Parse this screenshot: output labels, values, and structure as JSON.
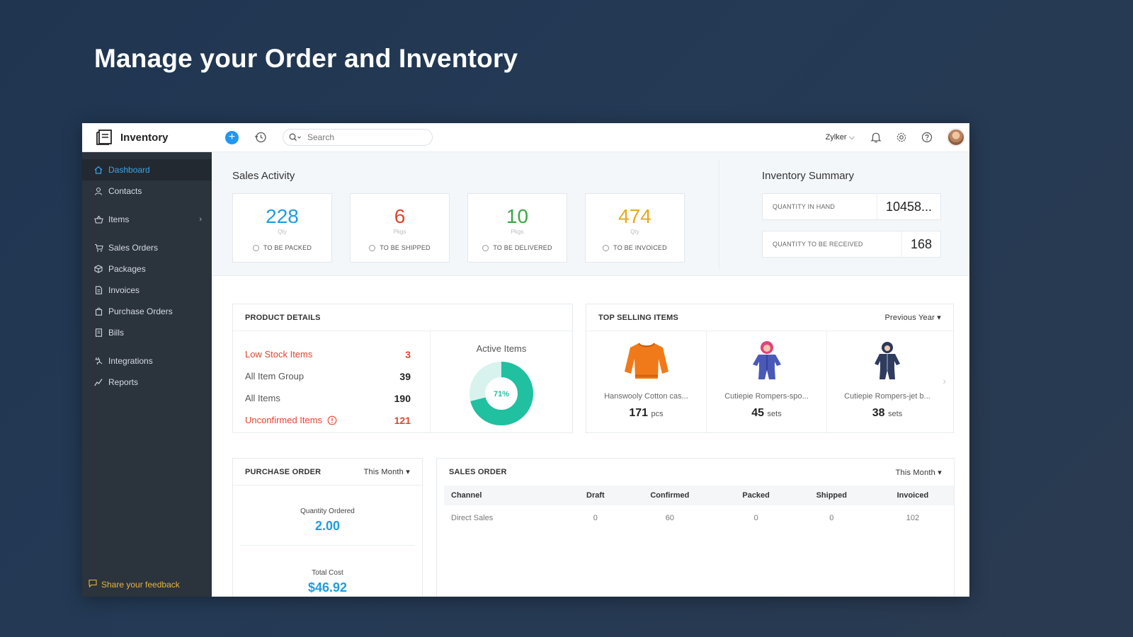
{
  "headline": "Manage your Order and Inventory",
  "brand": {
    "name": "Inventory"
  },
  "sidebar": {
    "items": [
      {
        "label": "Dashboard",
        "icon": "home-icon"
      },
      {
        "label": "Contacts",
        "icon": "user-icon"
      },
      {
        "label": "Items",
        "icon": "basket-icon"
      },
      {
        "label": "Sales Orders",
        "icon": "cart-icon"
      },
      {
        "label": "Packages",
        "icon": "package-icon"
      },
      {
        "label": "Invoices",
        "icon": "invoice-icon"
      },
      {
        "label": "Purchase Orders",
        "icon": "bag-icon"
      },
      {
        "label": "Bills",
        "icon": "bill-icon"
      },
      {
        "label": "Integrations",
        "icon": "plug-icon"
      },
      {
        "label": "Reports",
        "icon": "chart-line-icon"
      }
    ],
    "feedback": "Share your feedback"
  },
  "topbar": {
    "search_placeholder": "Search",
    "org": "Zylker"
  },
  "sales_activity": {
    "title": "Sales Activity",
    "cards": [
      {
        "value": "228",
        "unit": "Qty",
        "label": "TO BE PACKED",
        "color": "#1e9ee0"
      },
      {
        "value": "6",
        "unit": "Pkgs",
        "label": "TO BE SHIPPED",
        "color": "#e0452e"
      },
      {
        "value": "10",
        "unit": "Pkgs",
        "label": "TO BE DELIVERED",
        "color": "#3aa845"
      },
      {
        "value": "474",
        "unit": "Qty",
        "label": "TO BE INVOICED",
        "color": "#e6a91f"
      }
    ]
  },
  "inventory_summary": {
    "title": "Inventory Summary",
    "rows": [
      {
        "label": "QUANTITY IN HAND",
        "value": "10458..."
      },
      {
        "label": "QUANTITY TO BE RECEIVED",
        "value": "168"
      }
    ]
  },
  "product_details": {
    "title": "PRODUCT DETAILS",
    "rows": [
      {
        "label": "Low Stock Items",
        "value": "3"
      },
      {
        "label": "All Item Group",
        "value": "39"
      },
      {
        "label": "All Items",
        "value": "190"
      },
      {
        "label": "Unconfirmed Items",
        "value": "121"
      }
    ],
    "active_items": {
      "title": "Active Items",
      "percent_label": "71%",
      "fraction": 0.71
    }
  },
  "top_selling": {
    "title": "TOP SELLING ITEMS",
    "period": "Previous Year",
    "items": [
      {
        "name": "Hanswooly Cotton cas...",
        "qty": "171",
        "unit": "pcs"
      },
      {
        "name": "Cutiepie Rompers-spo...",
        "qty": "45",
        "unit": "sets"
      },
      {
        "name": "Cutiepie Rompers-jet b...",
        "qty": "38",
        "unit": "sets"
      }
    ]
  },
  "purchase_order": {
    "title": "PURCHASE ORDER",
    "period": "This Month",
    "qty_label": "Quantity Ordered",
    "qty_value": "2.00",
    "cost_label": "Total Cost",
    "cost_value": "$46.92"
  },
  "sales_order": {
    "title": "SALES ORDER",
    "period": "This Month",
    "columns": [
      "Channel",
      "Draft",
      "Confirmed",
      "Packed",
      "Shipped",
      "Invoiced"
    ],
    "rows": [
      [
        "Direct Sales",
        "0",
        "60",
        "0",
        "0",
        "102"
      ]
    ]
  }
}
